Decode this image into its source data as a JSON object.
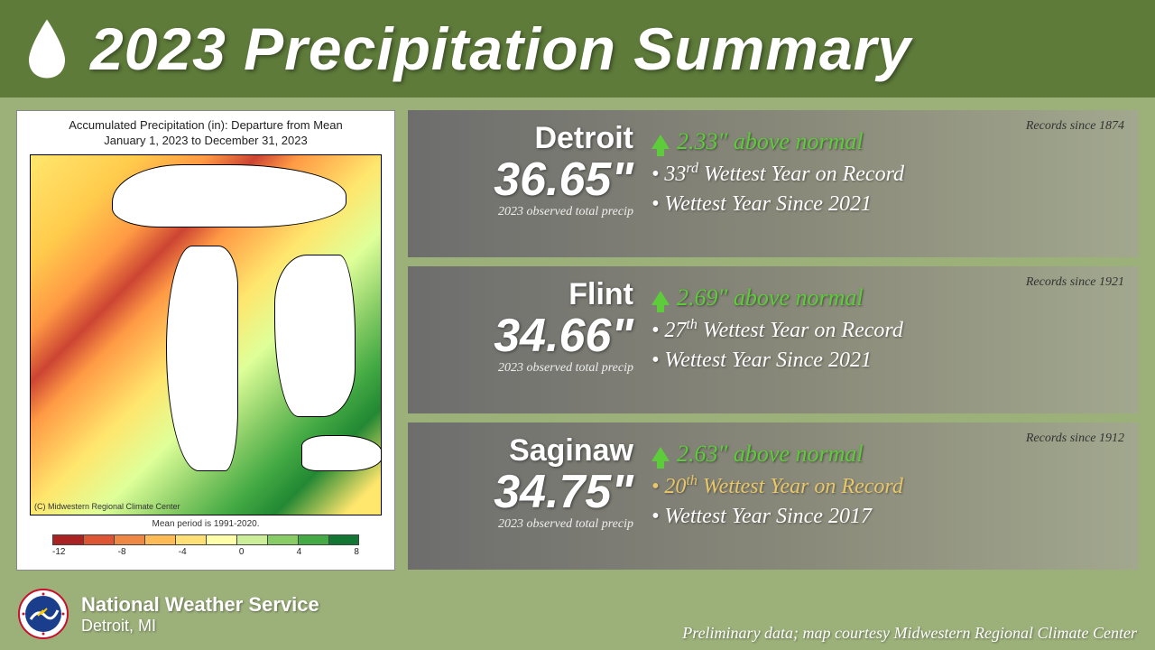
{
  "header": {
    "title": "2023 Precipitation Summary"
  },
  "map": {
    "title_line1": "Accumulated Precipitation (in): Departure from Mean",
    "title_line2": "January 1, 2023 to December 31, 2023",
    "copyright": "(C) Midwestern Regional Climate Center",
    "period_note": "Mean period is 1991-2020.",
    "colorbar_colors": [
      "#aa2222",
      "#dd5533",
      "#ee8844",
      "#ffbb55",
      "#ffe077",
      "#ffffaa",
      "#ccee99",
      "#88cc66",
      "#44aa44",
      "#117733"
    ],
    "colorbar_labels": [
      "-12",
      "-8",
      "-4",
      "0",
      "4",
      "8"
    ]
  },
  "cities": [
    {
      "name": "Detroit",
      "value": "36.65\"",
      "sub": "2023 observed total precip",
      "above": "2.33\" above normal",
      "records": "Records since 1874",
      "bullet1_rank": "33",
      "bullet1_suffix": "rd",
      "bullet1_rest": " Wettest Year on Record",
      "bullet1_gold": false,
      "bullet2": "Wettest Year Since 2021"
    },
    {
      "name": "Flint",
      "value": "34.66\"",
      "sub": "2023 observed total precip",
      "above": "2.69\" above normal",
      "records": "Records since 1921",
      "bullet1_rank": "27",
      "bullet1_suffix": "th",
      "bullet1_rest": " Wettest Year on Record",
      "bullet1_gold": false,
      "bullet2": "Wettest Year Since 2021"
    },
    {
      "name": "Saginaw",
      "value": "34.75\"",
      "sub": "2023 observed total precip",
      "above": "2.63\" above normal",
      "records": "Records since 1912",
      "bullet1_rank": "20",
      "bullet1_suffix": "th",
      "bullet1_rest": " Wettest Year on Record",
      "bullet1_gold": true,
      "bullet2": "Wettest Year Since 2017"
    }
  ],
  "footer": {
    "org": "National Weather Service",
    "location": "Detroit, MI",
    "note": "Preliminary data; map courtesy Midwestern Regional Climate Center"
  }
}
